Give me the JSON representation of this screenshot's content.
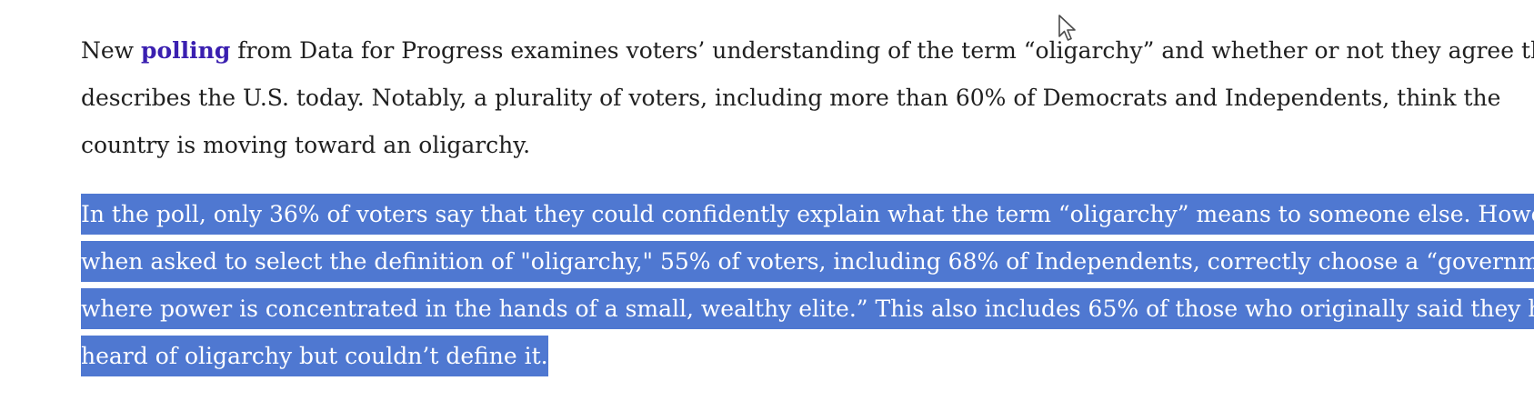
{
  "article": {
    "paragraph1": {
      "lead": "New ",
      "link_text": "polling",
      "line1_rest": " from Data for Progress examines voters’ understanding of the term “oligarchy” and whether or not they agree that it",
      "line2": "describes the U.S. today. Notably, a plurality of voters, including more than 60% of Democrats and Independents, think the",
      "line3": "country is moving toward an oligarchy."
    },
    "paragraph2": {
      "line1": "In the poll, only 36% of voters say that they could confidently explain what the term “oligarchy” means to someone else. However,",
      "line2": "when asked to select the definition of \"oligarchy,\" 55% of voters, including 68% of Independents, correctly choose a “government",
      "line3": "where power is concentrated in the hands of a small, wealthy elite.” This also includes 65% of those who originally said they had",
      "line4": "heard of oligarchy but couldn’t define it."
    }
  },
  "colors": {
    "text": "#1f1f1f",
    "link": "#3a1fb0",
    "selection_background": "#4f78d1",
    "selection_text": "#ffffff"
  },
  "icons": {
    "cursor": "mouse-pointer-icon"
  }
}
